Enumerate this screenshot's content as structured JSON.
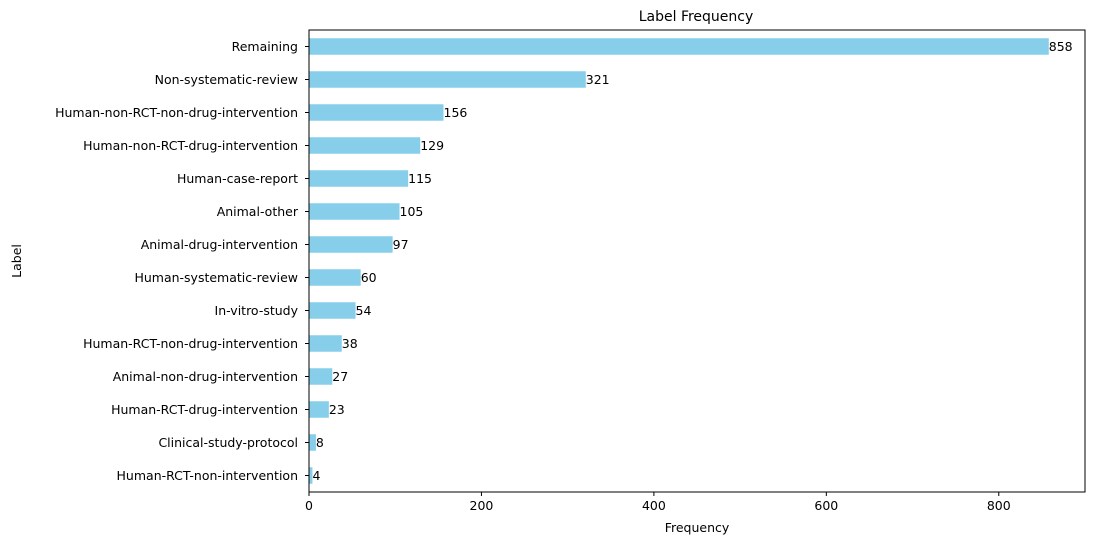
{
  "chart_data": {
    "type": "bar",
    "orientation": "horizontal",
    "title": "Label Frequency",
    "xlabel": "Frequency",
    "ylabel": "Label",
    "xlim": [
      0,
      900
    ],
    "xticks": [
      0,
      200,
      400,
      600,
      800
    ],
    "grid": false,
    "color": "#87CEEB",
    "categories": [
      "Remaining",
      "Non-systematic-review",
      "Human-non-RCT-non-drug-intervention",
      "Human-non-RCT-drug-intervention",
      "Human-case-report",
      "Animal-other",
      "Animal-drug-intervention",
      "Human-systematic-review",
      "In-vitro-study",
      "Human-RCT-non-drug-intervention",
      "Animal-non-drug-intervention",
      "Human-RCT-drug-intervention",
      "Clinical-study-protocol",
      "Human-RCT-non-intervention"
    ],
    "values": [
      858,
      321,
      156,
      129,
      115,
      105,
      97,
      60,
      54,
      38,
      27,
      23,
      8,
      4
    ]
  }
}
